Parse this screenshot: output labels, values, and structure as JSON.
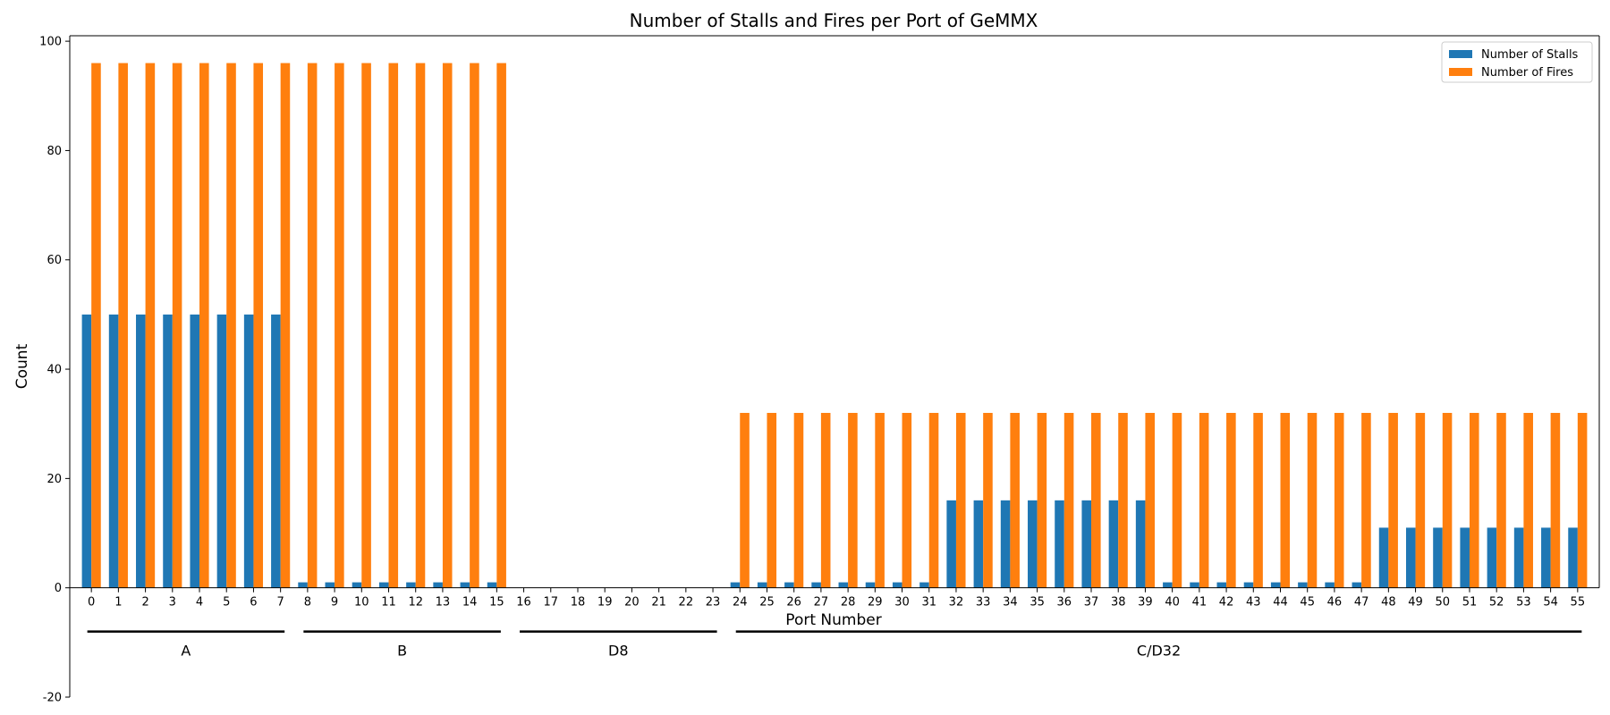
{
  "chart_data": {
    "type": "bar",
    "title": "Number of Stalls and Fires per Port of GeMMX",
    "xlabel": "Port Number",
    "ylabel": "Count",
    "ylim": [
      -20,
      101
    ],
    "yticks": [
      -20,
      0,
      20,
      40,
      60,
      80,
      100
    ],
    "categories": [
      "0",
      "1",
      "2",
      "3",
      "4",
      "5",
      "6",
      "7",
      "8",
      "9",
      "10",
      "11",
      "12",
      "13",
      "14",
      "15",
      "16",
      "17",
      "18",
      "19",
      "20",
      "21",
      "22",
      "23",
      "24",
      "25",
      "26",
      "27",
      "28",
      "29",
      "30",
      "31",
      "32",
      "33",
      "34",
      "35",
      "36",
      "37",
      "38",
      "39",
      "40",
      "41",
      "42",
      "43",
      "44",
      "45",
      "46",
      "47",
      "48",
      "49",
      "50",
      "51",
      "52",
      "53",
      "54",
      "55"
    ],
    "series": [
      {
        "name": "Number of Stalls",
        "color": "#1f77b4",
        "values": [
          50,
          50,
          50,
          50,
          50,
          50,
          50,
          50,
          1,
          1,
          1,
          1,
          1,
          1,
          1,
          1,
          0,
          0,
          0,
          0,
          0,
          0,
          0,
          0,
          1,
          1,
          1,
          1,
          1,
          1,
          1,
          1,
          16,
          16,
          16,
          16,
          16,
          16,
          16,
          16,
          1,
          1,
          1,
          1,
          1,
          1,
          1,
          1,
          11,
          11,
          11,
          11,
          11,
          11,
          11,
          11
        ]
      },
      {
        "name": "Number of Fires",
        "color": "#ff7f0e",
        "values": [
          96,
          96,
          96,
          96,
          96,
          96,
          96,
          96,
          96,
          96,
          96,
          96,
          96,
          96,
          96,
          96,
          0,
          0,
          0,
          0,
          0,
          0,
          0,
          0,
          32,
          32,
          32,
          32,
          32,
          32,
          32,
          32,
          32,
          32,
          32,
          32,
          32,
          32,
          32,
          32,
          32,
          32,
          32,
          32,
          32,
          32,
          32,
          32,
          32,
          32,
          32,
          32,
          32,
          32,
          32,
          32
        ]
      }
    ],
    "groups": [
      {
        "label": "A",
        "start": 0,
        "end": 7
      },
      {
        "label": "B",
        "start": 8,
        "end": 15
      },
      {
        "label": "D8",
        "start": 16,
        "end": 23
      },
      {
        "label": "C/D32",
        "start": 24,
        "end": 55
      }
    ],
    "legend": "top-right",
    "grid": false
  }
}
